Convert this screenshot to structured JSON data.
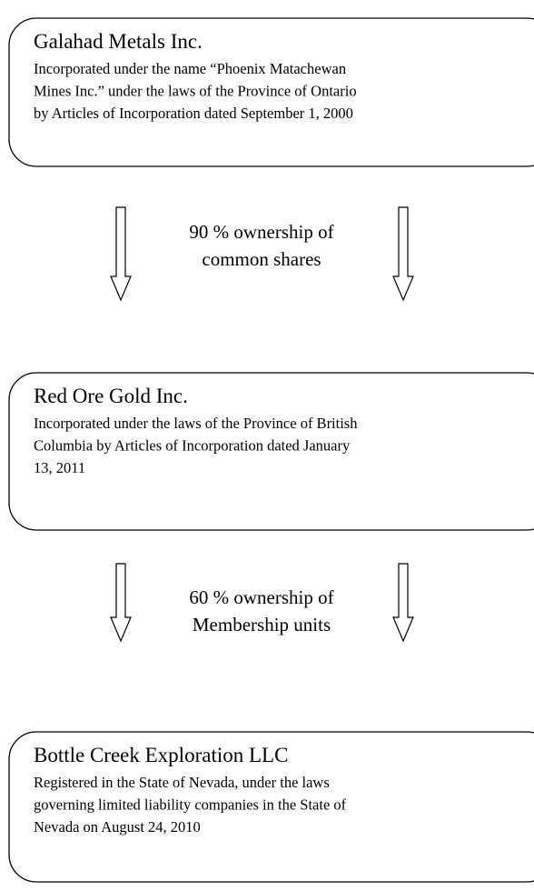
{
  "nodes": [
    {
      "title": "Galahad Metals Inc.",
      "lines": [
        "Incorporated under the name “Phoenix Matachewan",
        "Mines Inc.” under the laws of the Province of Ontario",
        "by Articles of Incorporation dated September 1, 2000"
      ]
    },
    {
      "title": "Red Ore Gold Inc.",
      "lines": [
        "Incorporated under the laws of the Province of British",
        "Columbia by Articles of Incorporation dated January",
        "13, 2011"
      ]
    },
    {
      "title": "Bottle Creek Exploration LLC",
      "lines": [
        "Registered in the State of Nevada, under the laws",
        "governing limited liability companies in the State of",
        "Nevada on August 24, 2010"
      ]
    }
  ],
  "edges": [
    {
      "lines": [
        "90 % ownership of",
        "common shares"
      ]
    },
    {
      "lines": [
        "60 % ownership of",
        "Membership units"
      ]
    }
  ]
}
